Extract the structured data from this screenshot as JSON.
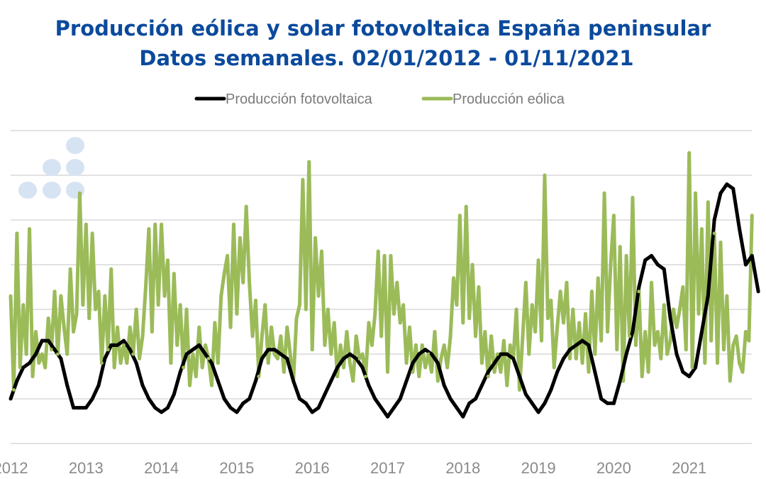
{
  "chart_data": {
    "type": "line",
    "title": "Producción eólica y solar fotovoltaica España peninsular",
    "subtitle": "Datos semanales. 02/01/2012 - 01/11/2021",
    "xlabel": "",
    "ylabel": "",
    "x_tick_labels": [
      "2012",
      "2013",
      "2014",
      "2015",
      "2016",
      "2017",
      "2018",
      "2019",
      "2020",
      "2021"
    ],
    "y_tick_labels": [],
    "y_units": "gridline steps (no y labels printed)",
    "ylim": [
      0,
      7
    ],
    "grid": true,
    "legend_position": "top",
    "colors": {
      "title": "#0b4a9c",
      "solar": "#000000",
      "wind": "#9bbb59",
      "logo": "#d6e3f2"
    },
    "series": [
      {
        "name": "Producción fotovoltaica",
        "color": "#000000",
        "by_year": [
          {
            "year": 2012,
            "values": [
              1.0,
              1.4,
              1.7,
              1.8,
              2.0,
              2.3,
              2.3,
              2.1,
              1.9,
              1.3,
              0.8,
              0.8
            ]
          },
          {
            "year": 2013,
            "values": [
              0.8,
              1.0,
              1.3,
              1.9,
              2.2,
              2.2,
              2.3,
              2.1,
              1.8,
              1.3,
              1.0,
              0.8
            ]
          },
          {
            "year": 2014,
            "values": [
              0.7,
              0.8,
              1.1,
              1.6,
              2.0,
              2.1,
              2.2,
              2.0,
              1.8,
              1.4,
              1.0,
              0.8
            ]
          },
          {
            "year": 2015,
            "values": [
              0.7,
              0.9,
              1.0,
              1.4,
              1.9,
              2.1,
              2.1,
              2.0,
              1.9,
              1.4,
              1.0,
              0.9
            ]
          },
          {
            "year": 2016,
            "values": [
              0.7,
              0.8,
              1.1,
              1.4,
              1.7,
              1.9,
              2.0,
              1.9,
              1.7,
              1.3,
              1.0,
              0.8
            ]
          },
          {
            "year": 2017,
            "values": [
              0.6,
              0.8,
              1.0,
              1.4,
              1.8,
              2.0,
              2.1,
              2.0,
              1.8,
              1.3,
              1.0,
              0.8
            ]
          },
          {
            "year": 2018,
            "values": [
              0.6,
              0.9,
              1.0,
              1.3,
              1.6,
              1.8,
              2.0,
              2.0,
              1.9,
              1.5,
              1.1,
              0.9
            ]
          },
          {
            "year": 2019,
            "values": [
              0.7,
              0.9,
              1.2,
              1.6,
              1.9,
              2.1,
              2.2,
              2.3,
              2.2,
              1.6,
              1.0,
              0.9
            ]
          },
          {
            "year": 2020,
            "values": [
              0.9,
              1.4,
              2.0,
              2.5,
              3.5,
              4.1,
              4.2,
              4.0,
              3.9,
              2.8,
              2.0,
              1.6
            ]
          },
          {
            "year": 2021,
            "values": [
              1.5,
              1.7,
              2.5,
              3.3,
              5.0,
              5.6,
              5.8,
              5.7,
              4.8,
              4.0,
              4.2,
              3.4
            ]
          }
        ]
      },
      {
        "name": "Producción eólica",
        "color": "#9bbb59",
        "by_year": [
          {
            "year": 2012,
            "values": [
              3.3,
              1.2,
              4.7,
              1.7,
              3.1,
              2.0,
              4.8,
              1.5,
              2.5,
              1.8,
              2.0,
              1.7,
              2.8,
              2.1,
              3.4,
              2.0,
              3.3,
              2.6,
              2.0,
              3.9,
              2.5,
              2.9,
              5.6,
              3.1
            ]
          },
          {
            "year": 2013,
            "values": [
              4.9,
              2.8,
              4.7,
              3.0,
              3.4,
              1.8,
              3.3,
              2.1,
              3.9,
              1.7,
              2.6,
              1.8,
              2.2,
              1.8,
              2.6,
              2.0,
              3.0,
              1.9,
              2.4,
              3.5,
              4.8,
              2.5,
              4.9,
              3.1
            ]
          },
          {
            "year": 2014,
            "values": [
              4.9,
              3.3,
              4.1,
              1.8,
              3.8,
              2.2,
              3.1,
              1.7,
              3.0,
              1.3,
              2.0,
              1.5,
              2.6,
              1.7,
              2.2,
              1.9,
              1.3,
              2.7,
              1.8,
              3.3,
              3.8,
              4.2,
              2.6,
              4.9
            ]
          },
          {
            "year": 2015,
            "values": [
              2.9,
              4.6,
              3.6,
              5.3,
              3.6,
              2.4,
              3.2,
              1.5,
              2.4,
              3.1,
              1.8,
              2.6,
              2.0,
              1.9,
              2.4,
              1.6,
              2.6,
              2.0,
              1.4,
              2.8,
              3.1,
              5.9,
              3.0,
              6.3
            ]
          },
          {
            "year": 2016,
            "values": [
              2.1,
              4.6,
              3.3,
              4.3,
              2.2,
              3.0,
              2.0,
              2.7,
              1.5,
              2.2,
              1.7,
              2.5,
              1.8,
              1.4,
              2.4,
              1.9,
              2.0,
              1.5,
              2.7,
              2.2,
              2.9,
              4.3,
              2.4,
              4.2
            ]
          },
          {
            "year": 2017,
            "values": [
              1.6,
              4.2,
              2.9,
              3.6,
              2.7,
              3.1,
              1.8,
              2.6,
              1.6,
              2.2,
              1.5,
              2.2,
              1.7,
              2.0,
              1.6,
              2.5,
              1.4,
              1.9,
              2.2,
              1.7,
              2.4,
              3.7,
              3.1,
              5.1
            ]
          },
          {
            "year": 2018,
            "values": [
              2.7,
              5.3,
              2.8,
              4.0,
              2.4,
              3.5,
              1.8,
              2.5,
              1.5,
              2.4,
              1.6,
              2.0,
              1.6,
              2.3,
              1.3,
              2.2,
              1.9,
              3.0,
              1.2,
              2.4,
              3.6,
              2.0,
              3.1,
              2.5
            ]
          },
          {
            "year": 2019,
            "values": [
              4.1,
              2.3,
              6.0,
              2.8,
              3.2,
              1.7,
              2.6,
              3.4,
              2.7,
              3.6,
              1.9,
              3.0,
              1.9,
              2.7,
              1.8,
              2.9,
              1.6,
              3.4,
              2.0,
              3.7,
              2.3,
              5.6,
              2.5,
              4.0
            ]
          },
          {
            "year": 2020,
            "values": [
              5.1,
              2.1,
              4.4,
              1.4,
              4.2,
              2.4,
              5.5,
              2.2,
              3.4,
              1.5,
              2.5,
              1.6,
              3.6,
              2.2,
              2.5,
              1.9,
              3.1,
              2.0,
              2.3,
              3.0,
              2.6,
              3.0,
              3.5,
              2.1
            ]
          },
          {
            "year": 2021,
            "values": [
              6.5,
              1.7,
              5.6,
              2.9,
              4.8,
              1.8,
              5.4,
              2.3,
              4.7,
              1.8,
              4.5,
              2.1,
              3.3,
              1.4,
              2.2,
              2.4,
              1.8,
              1.6,
              2.5,
              2.3,
              5.1
            ]
          }
        ]
      }
    ]
  }
}
